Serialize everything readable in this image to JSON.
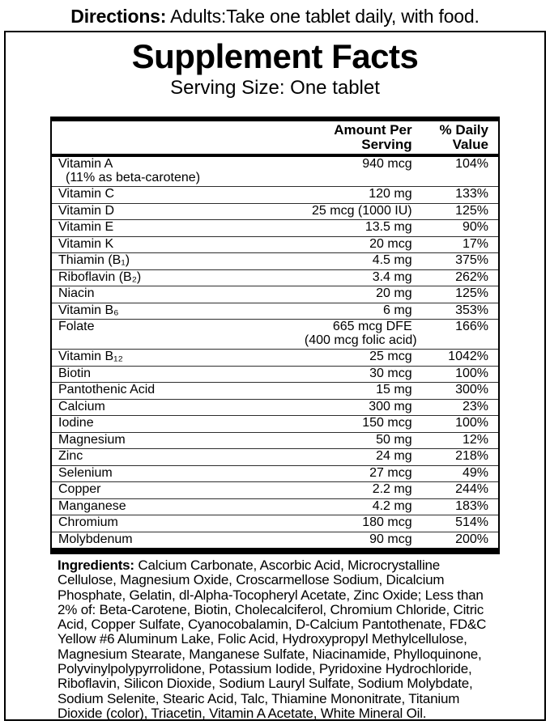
{
  "directions": {
    "label": "Directions:",
    "text": "Adults:Take one tablet daily, with food."
  },
  "panel": {
    "title": "Supplement Facts",
    "serving_size": "Serving Size: One tablet",
    "table": {
      "header_amount_line1": "Amount Per",
      "header_amount_line2": "Serving",
      "header_dv_line1": "% Daily",
      "header_dv_line2": "Value",
      "rows": [
        {
          "name": "Vitamin A",
          "name_sub": "(11% as beta-carotene)",
          "amount": "940 mcg",
          "dv": "104%"
        },
        {
          "name": "Vitamin C",
          "amount": "120 mg",
          "dv": "133%"
        },
        {
          "name": "Vitamin D",
          "amount": "25 mcg (1000 IU)",
          "dv": "125%"
        },
        {
          "name": "Vitamin E",
          "amount": "13.5 mg",
          "dv": "90%"
        },
        {
          "name": "Vitamin K",
          "amount": "20 mcg",
          "dv": "17%"
        },
        {
          "name": "Thiamin (B₁)",
          "amount": "4.5 mg",
          "dv": "375%"
        },
        {
          "name": "Riboflavin (B₂)",
          "amount": "3.4 mg",
          "dv": "262%"
        },
        {
          "name": "Niacin",
          "amount": "20 mg",
          "dv": "125%"
        },
        {
          "name": "Vitamin B₆",
          "amount": "6 mg",
          "dv": "353%"
        },
        {
          "name": "Folate",
          "amount": "665 mcg DFE",
          "amount_sub": "(400 mcg folic acid)",
          "dv": "166%"
        },
        {
          "name": "Vitamin B₁₂",
          "amount": "25 mcg",
          "dv": "1042%"
        },
        {
          "name": "Biotin",
          "amount": "30 mcg",
          "dv": "100%"
        },
        {
          "name": "Pantothenic Acid",
          "amount": "15 mg",
          "dv": "300%"
        },
        {
          "name": "Calcium",
          "amount": "300 mg",
          "dv": "23%"
        },
        {
          "name": "Iodine",
          "amount": "150 mcg",
          "dv": "100%"
        },
        {
          "name": "Magnesium",
          "amount": "50 mg",
          "dv": "12%"
        },
        {
          "name": "Zinc",
          "amount": "24 mg",
          "dv": "218%"
        },
        {
          "name": "Selenium",
          "amount": "27 mcg",
          "dv": "49%"
        },
        {
          "name": "Copper",
          "amount": "2.2 mg",
          "dv": "244%"
        },
        {
          "name": "Manganese",
          "amount": "4.2 mg",
          "dv": "183%"
        },
        {
          "name": "Chromium",
          "amount": "180 mcg",
          "dv": "514%"
        },
        {
          "name": "Molybdenum",
          "amount": "90 mcg",
          "dv": "200%"
        }
      ]
    }
  },
  "ingredients": {
    "label": "Ingredients:",
    "text": "Calcium Carbonate, Ascorbic Acid, Microcrystalline Cellulose, Magnesium Oxide, Croscarmellose Sodium, Dicalcium Phosphate, Gelatin, dl-Alpha-Tocopheryl Acetate, Zinc Oxide; Less than 2% of: Beta-Carotene, Biotin, Cholecalciferol, Chromium Chloride, Citric Acid, Copper Sulfate, Cyanocobalamin, D-Calcium Pantothenate, FD&C Yellow #6 Aluminum Lake, Folic Acid, Hydroxypropyl Methylcellulose, Magnesium Stearate, Manganese Sulfate, Niacinamide, Phylloquinone, Polyvinylpolypyrrolidone, Potassium Iodide, Pyridoxine Hydrochloride, Riboflavin, Silicon Dioxide, Sodium Lauryl Sulfate, Sodium Molybdate, Sodium Selenite, Stearic Acid, Talc, Thiamine Mononitrate, Titanium Dioxide (color), Triacetin, Vitamin A Acetate, White Mineral Oil."
  },
  "colors": {
    "text": "#000000",
    "background": "#ffffff",
    "row_divider": "#2e2e2e"
  }
}
